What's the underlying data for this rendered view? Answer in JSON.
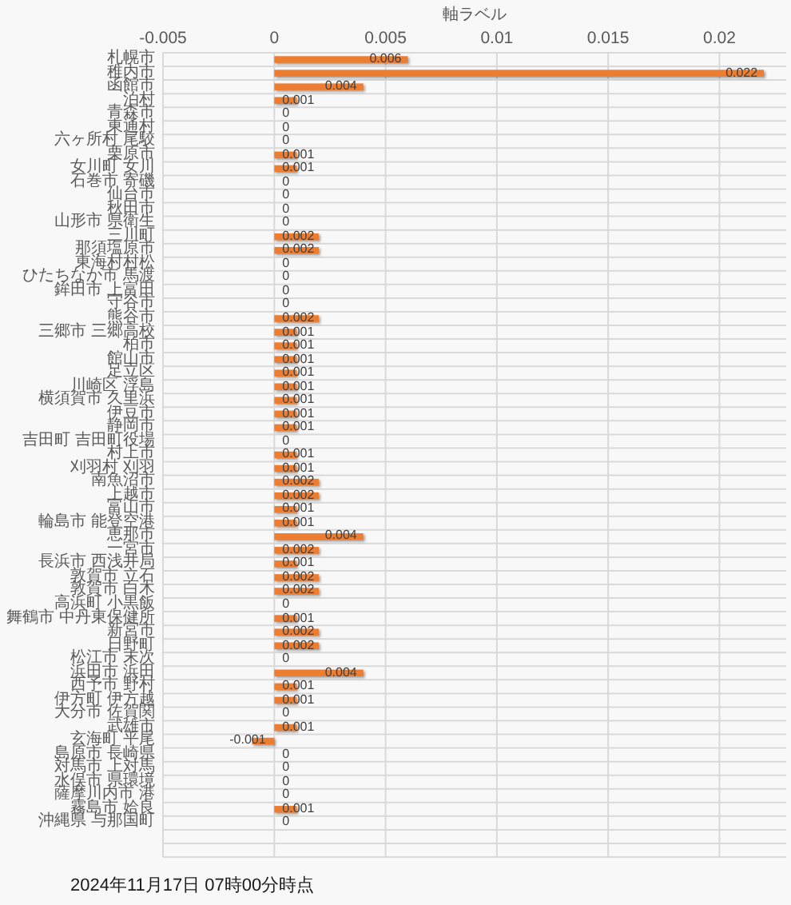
{
  "chart_data": {
    "type": "bar",
    "orientation": "horizontal",
    "xlabel": "軸ラベル",
    "categories": [
      "札幌市",
      "稚内市",
      "函館市",
      "泊村",
      "青森市",
      "東通村",
      "六ヶ所村 尾駮",
      "栗原市",
      "女川町 女川",
      "石巻市 寄磯",
      "仙台市",
      "秋田市",
      "山形市 県衛生",
      "三川町",
      "那須塩原市",
      "東海村村松",
      "ひたちなか市 馬渡",
      "鉾田市 上富田",
      "守谷市",
      "熊谷市",
      "三郷市 三郷高校",
      "柏市",
      "館山市",
      "足立区",
      "川崎区 浮島",
      "横須賀市 久里浜",
      "伊豆市",
      "静岡市",
      "吉田町 吉田町役場",
      "村上市",
      "刈羽村 刈羽",
      "南魚沼市",
      "上越市",
      "富山市",
      "輪島市 能登空港",
      "恵那市",
      "一宮市",
      "長浜市 西浅井局",
      "敦賀市 立石",
      "敦賀市 白木",
      "高浜町 小黒飯",
      "舞鶴市 中丹東保健所",
      "新宮市",
      "日野町",
      "松江市 末次",
      "浜田市 浜田",
      "西予市 野村",
      "伊方町 伊方越",
      "大分市 佐賀関",
      "武雄市",
      "玄海町 平尾",
      "島原市 長崎県",
      "対馬市 上対馬",
      "水俣市 県環境",
      "薩摩川内市 港",
      "霧島市 姶良",
      "沖縄県 与那国町",
      null,
      null
    ],
    "values": [
      0.006,
      0.022,
      0.004,
      0.001,
      0,
      0,
      0,
      0.001,
      0.001,
      0,
      0,
      0,
      0,
      0.002,
      0.002,
      0,
      0,
      0,
      0,
      0.002,
      0.001,
      0.001,
      0.001,
      0.001,
      0.001,
      0.001,
      0.001,
      0.001,
      0,
      0.001,
      0.001,
      0.002,
      0.002,
      0.001,
      0.001,
      0.004,
      0.002,
      0.001,
      0.002,
      0.002,
      0,
      0.001,
      0.002,
      0.002,
      0,
      0.004,
      0.001,
      0.001,
      0,
      0.001,
      -0.001,
      0,
      0,
      0,
      0,
      0.001,
      0,
      null,
      null
    ],
    "color": "#ed7d31",
    "xlim": [
      -0.005,
      0.023
    ],
    "xticks": [
      -0.005,
      0,
      0.005,
      0.01,
      0.015,
      0.02
    ],
    "grid": true,
    "data_labels": true,
    "annotations": [
      "2024年11月17日 07時00分時点"
    ]
  }
}
